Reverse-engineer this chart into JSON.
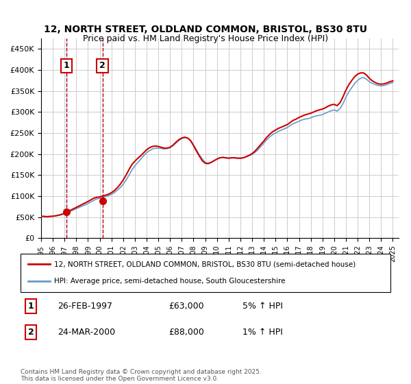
{
  "title_line1": "12, NORTH STREET, OLDLAND COMMON, BRISTOL, BS30 8TU",
  "title_line2": "Price paid vs. HM Land Registry's House Price Index (HPI)",
  "ylabel": "",
  "xlabel": "",
  "ylim": [
    0,
    475000
  ],
  "yticks": [
    0,
    50000,
    100000,
    150000,
    200000,
    250000,
    300000,
    350000,
    400000,
    450000
  ],
  "ytick_labels": [
    "£0",
    "£50K",
    "£100K",
    "£150K",
    "£200K",
    "£250K",
    "£300K",
    "£350K",
    "£400K",
    "£450K"
  ],
  "xlim_start": 1995.0,
  "xlim_end": 2025.5,
  "sale1_date": 1997.15,
  "sale1_price": 63000,
  "sale2_date": 2000.23,
  "sale2_price": 88000,
  "line_color_red": "#cc0000",
  "line_color_blue": "#6699cc",
  "marker_color": "#cc0000",
  "shade_color": "#ddeeff",
  "box_color": "#cc0000",
  "background_color": "#ffffff",
  "grid_color": "#cccccc",
  "legend_line1": "12, NORTH STREET, OLDLAND COMMON, BRISTOL, BS30 8TU (semi-detached house)",
  "legend_line2": "HPI: Average price, semi-detached house, South Gloucestershire",
  "table_row1": [
    "1",
    "26-FEB-1997",
    "£63,000",
    "5% ↑ HPI"
  ],
  "table_row2": [
    "2",
    "24-MAR-2000",
    "£88,000",
    "1% ↑ HPI"
  ],
  "footnote": "Contains HM Land Registry data © Crown copyright and database right 2025.\nThis data is licensed under the Open Government Licence v3.0.",
  "hpi_data_x": [
    1995.0,
    1995.25,
    1995.5,
    1995.75,
    1996.0,
    1996.25,
    1996.5,
    1996.75,
    1997.0,
    1997.25,
    1997.5,
    1997.75,
    1998.0,
    1998.25,
    1998.5,
    1998.75,
    1999.0,
    1999.25,
    1999.5,
    1999.75,
    2000.0,
    2000.25,
    2000.5,
    2000.75,
    2001.0,
    2001.25,
    2001.5,
    2001.75,
    2002.0,
    2002.25,
    2002.5,
    2002.75,
    2003.0,
    2003.25,
    2003.5,
    2003.75,
    2004.0,
    2004.25,
    2004.5,
    2004.75,
    2005.0,
    2005.25,
    2005.5,
    2005.75,
    2006.0,
    2006.25,
    2006.5,
    2006.75,
    2007.0,
    2007.25,
    2007.5,
    2007.75,
    2008.0,
    2008.25,
    2008.5,
    2008.75,
    2009.0,
    2009.25,
    2009.5,
    2009.75,
    2010.0,
    2010.25,
    2010.5,
    2010.75,
    2011.0,
    2011.25,
    2011.5,
    2011.75,
    2012.0,
    2012.25,
    2012.5,
    2012.75,
    2013.0,
    2013.25,
    2013.5,
    2013.75,
    2014.0,
    2014.25,
    2014.5,
    2014.75,
    2015.0,
    2015.25,
    2015.5,
    2015.75,
    2016.0,
    2016.25,
    2016.5,
    2016.75,
    2017.0,
    2017.25,
    2017.5,
    2017.75,
    2018.0,
    2018.25,
    2018.5,
    2018.75,
    2019.0,
    2019.25,
    2019.5,
    2019.75,
    2020.0,
    2020.25,
    2020.5,
    2020.75,
    2021.0,
    2021.25,
    2021.5,
    2021.75,
    2022.0,
    2022.25,
    2022.5,
    2022.75,
    2023.0,
    2023.25,
    2023.5,
    2023.75,
    2024.0,
    2024.25,
    2024.5,
    2024.75,
    2025.0
  ],
  "hpi_data_y": [
    52000,
    51500,
    51000,
    51500,
    52000,
    53000,
    54000,
    56000,
    58000,
    61000,
    64000,
    67000,
    70000,
    73000,
    76000,
    79000,
    82000,
    86000,
    90000,
    93000,
    95000,
    97000,
    99000,
    101000,
    104000,
    108000,
    114000,
    120000,
    128000,
    138000,
    150000,
    162000,
    172000,
    180000,
    188000,
    196000,
    203000,
    208000,
    212000,
    214000,
    214000,
    213000,
    212000,
    213000,
    215000,
    220000,
    226000,
    232000,
    237000,
    239000,
    238000,
    232000,
    222000,
    210000,
    198000,
    188000,
    180000,
    178000,
    180000,
    184000,
    188000,
    191000,
    192000,
    191000,
    190000,
    191000,
    191000,
    190000,
    190000,
    191000,
    193000,
    196000,
    199000,
    204000,
    210000,
    218000,
    226000,
    234000,
    241000,
    246000,
    250000,
    254000,
    257000,
    260000,
    263000,
    268000,
    272000,
    275000,
    278000,
    281000,
    283000,
    284000,
    286000,
    289000,
    291000,
    292000,
    294000,
    297000,
    300000,
    303000,
    305000,
    302000,
    308000,
    320000,
    335000,
    348000,
    358000,
    368000,
    375000,
    380000,
    382000,
    378000,
    372000,
    368000,
    365000,
    363000,
    362000,
    363000,
    365000,
    368000,
    370000
  ],
  "price_data_x": [
    1995.0,
    1995.25,
    1995.5,
    1995.75,
    1996.0,
    1996.25,
    1996.5,
    1996.75,
    1997.0,
    1997.25,
    1997.5,
    1997.75,
    1998.0,
    1998.25,
    1998.5,
    1998.75,
    1999.0,
    1999.25,
    1999.5,
    1999.75,
    2000.0,
    2000.25,
    2000.5,
    2000.75,
    2001.0,
    2001.25,
    2001.5,
    2001.75,
    2002.0,
    2002.25,
    2002.5,
    2002.75,
    2003.0,
    2003.25,
    2003.5,
    2003.75,
    2004.0,
    2004.25,
    2004.5,
    2004.75,
    2005.0,
    2005.25,
    2005.5,
    2005.75,
    2006.0,
    2006.25,
    2006.5,
    2006.75,
    2007.0,
    2007.25,
    2007.5,
    2007.75,
    2008.0,
    2008.25,
    2008.5,
    2008.75,
    2009.0,
    2009.25,
    2009.5,
    2009.75,
    2010.0,
    2010.25,
    2010.5,
    2010.75,
    2011.0,
    2011.25,
    2011.5,
    2011.75,
    2012.0,
    2012.25,
    2012.5,
    2012.75,
    2013.0,
    2013.25,
    2013.5,
    2013.75,
    2014.0,
    2014.25,
    2014.5,
    2014.75,
    2015.0,
    2015.25,
    2015.5,
    2015.75,
    2016.0,
    2016.25,
    2016.5,
    2016.75,
    2017.0,
    2017.25,
    2017.5,
    2017.75,
    2018.0,
    2018.25,
    2018.5,
    2018.75,
    2019.0,
    2019.25,
    2019.5,
    2019.75,
    2020.0,
    2020.25,
    2020.5,
    2020.75,
    2021.0,
    2021.25,
    2021.5,
    2021.75,
    2022.0,
    2022.25,
    2022.5,
    2022.75,
    2023.0,
    2023.25,
    2023.5,
    2023.75,
    2024.0,
    2024.25,
    2024.5,
    2024.75,
    2025.0
  ],
  "price_data_y": [
    52000,
    51500,
    51000,
    51500,
    52000,
    53000,
    54500,
    56500,
    59000,
    63000,
    66000,
    69500,
    73000,
    76500,
    80000,
    83500,
    87000,
    91000,
    95000,
    97000,
    98000,
    100000,
    102000,
    104500,
    108000,
    113000,
    120000,
    128000,
    138000,
    150000,
    163000,
    175000,
    183000,
    190000,
    196000,
    203000,
    210000,
    215000,
    218000,
    219000,
    218000,
    216000,
    214000,
    214000,
    216000,
    221000,
    228000,
    234000,
    238000,
    240000,
    238000,
    232000,
    220000,
    207000,
    195000,
    184000,
    178000,
    177000,
    180000,
    184000,
    188000,
    191000,
    192000,
    191000,
    190000,
    191000,
    191000,
    190000,
    190000,
    191000,
    194000,
    197000,
    201000,
    207000,
    215000,
    223000,
    231000,
    240000,
    247000,
    253000,
    257000,
    261000,
    264000,
    267000,
    270000,
    275000,
    280000,
    283000,
    287000,
    290000,
    293000,
    295000,
    297000,
    300000,
    303000,
    305000,
    307000,
    310000,
    314000,
    317000,
    318000,
    315000,
    322000,
    336000,
    352000,
    365000,
    375000,
    384000,
    390000,
    393000,
    393000,
    388000,
    380000,
    374000,
    370000,
    367000,
    366000,
    367000,
    369000,
    372000,
    374000
  ]
}
